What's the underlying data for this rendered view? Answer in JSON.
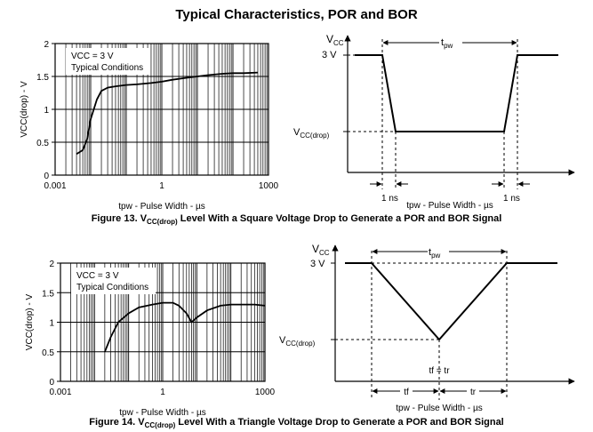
{
  "page": {
    "title": "Typical Characteristics, POR and BOR"
  },
  "chart_data": [
    {
      "type": "line",
      "title": "",
      "xscale": "log",
      "xlim": [
        0.001,
        1000
      ],
      "ylim": [
        0,
        2
      ],
      "xticks": [
        "0.001",
        "1",
        "1000"
      ],
      "yticks": [
        "0",
        "0.5",
        "1",
        "1.5",
        "2"
      ],
      "xlabel": "tpw - Pulse Width - µs",
      "ylabel": "VCC(drop) - V",
      "legend": [
        "VCC = 3 V",
        "Typical Conditions"
      ],
      "x": [
        0.004,
        0.006,
        0.008,
        0.01,
        0.015,
        0.02,
        0.03,
        0.05,
        0.1,
        0.2,
        0.5,
        1,
        2,
        5,
        10,
        20,
        50,
        100,
        200,
        500
      ],
      "values": [
        0.32,
        0.38,
        0.55,
        0.85,
        1.15,
        1.28,
        1.33,
        1.35,
        1.37,
        1.38,
        1.4,
        1.42,
        1.45,
        1.48,
        1.5,
        1.52,
        1.54,
        1.55,
        1.55,
        1.56
      ]
    },
    {
      "type": "line",
      "title": "",
      "xscale": "log",
      "xlim": [
        0.001,
        1000
      ],
      "ylim": [
        0,
        2
      ],
      "xticks": [
        "0.001",
        "1",
        "1000"
      ],
      "yticks": [
        "0",
        "0.5",
        "1",
        "1.5",
        "2"
      ],
      "xlabel": "tpw - Pulse Width - µs",
      "ylabel": "VCC(drop) - V",
      "legend": [
        "VCC = 3 V",
        "Typical Conditions"
      ],
      "x": [
        0.02,
        0.03,
        0.05,
        0.1,
        0.2,
        0.5,
        1,
        2,
        3,
        5,
        7,
        10,
        20,
        50,
        100,
        200,
        500,
        1000
      ],
      "values": [
        0.5,
        0.75,
        1.0,
        1.15,
        1.25,
        1.3,
        1.33,
        1.33,
        1.28,
        1.15,
        1.0,
        1.08,
        1.2,
        1.28,
        1.3,
        1.3,
        1.3,
        1.28
      ]
    }
  ],
  "diagram1": {
    "vcc": "V",
    "vcc_sub": "CC",
    "level_3v": "3 V",
    "vdrop": "V",
    "vdrop_sub": "CC(drop)",
    "tpw": "t",
    "tpw_sub": "pw",
    "one_ns_left": "1 ns",
    "one_ns_right": "1 ns",
    "axis_label": "tpw - Pulse Width - µs"
  },
  "diagram2": {
    "vcc": "V",
    "vcc_sub": "CC",
    "level_3v": "3 V",
    "vdrop": "V",
    "vdrop_sub": "CC(drop)",
    "tpw": "t",
    "tpw_sub": "pw",
    "tf_eq_tr": "tf = tr",
    "tf": "tf",
    "tr": "tr",
    "axis_label": "tpw - Pulse Width - µs"
  },
  "captions": {
    "fig13_pre": "Figure 13. V",
    "fig13_sub": "CC(drop)",
    "fig13_post": " Level With a Square Voltage Drop to Generate a POR and BOR Signal",
    "fig14_pre": "Figure 14. V",
    "fig14_sub": "CC(drop)",
    "fig14_post": " Level With a Triangle Voltage Drop to Generate a POR and BOR Signal"
  }
}
